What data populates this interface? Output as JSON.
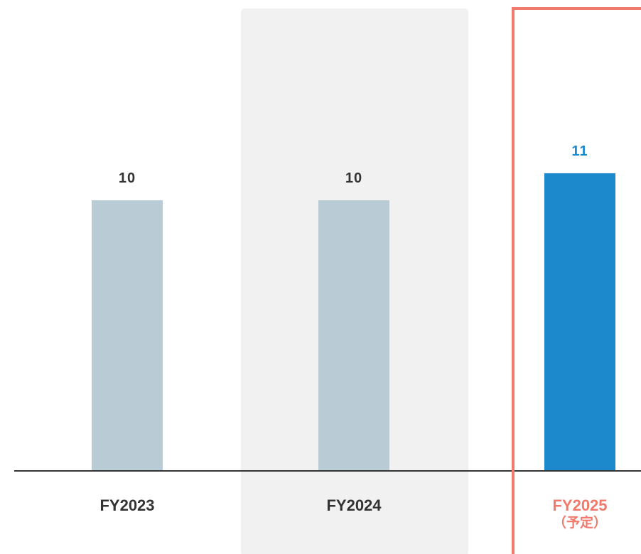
{
  "chart_data": {
    "type": "bar",
    "categories": [
      "FY2023",
      "FY2024",
      "FY2025"
    ],
    "category_sublabels": [
      "",
      "",
      "（予定）"
    ],
    "values": [
      10,
      10,
      11
    ],
    "value_labels": [
      "10",
      "10",
      "11"
    ],
    "title": "",
    "xlabel": "",
    "ylabel": "",
    "ylim": [
      0,
      12
    ],
    "grid": false,
    "legend": "none",
    "highlight_background_category": "FY2024",
    "highlight_box_category": "FY2025",
    "colors": {
      "bar_default": "#b9cbd4",
      "bar_highlight": "#1b89cb",
      "highlight_background": "#f1f1f1",
      "highlight_box": "#f07a6c",
      "axis": "#333333",
      "label_default": "#333333",
      "value_highlight": "#1b89cb",
      "category_highlight": "#f07a6c"
    }
  }
}
